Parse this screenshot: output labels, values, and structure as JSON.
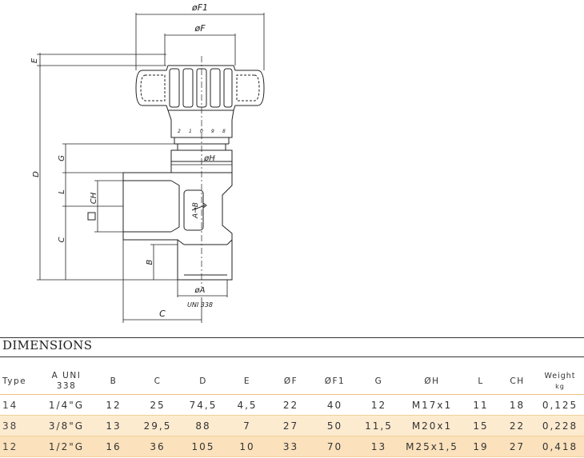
{
  "drawing": {
    "labels": {
      "f1": "øF1",
      "f": "øF",
      "e": "E",
      "d": "D",
      "g": "G",
      "l": "L",
      "ch": "CH",
      "h": "øH",
      "c_side": "C",
      "b": "B",
      "a": "øA",
      "uni": "UNI 338",
      "c_bottom": "C",
      "flow": "A→B",
      "scale": [
        "2",
        "1",
        "0",
        "9",
        "8"
      ]
    }
  },
  "section": {
    "title": "DIMENSIONS"
  },
  "table": {
    "headers": [
      [
        "Type"
      ],
      [
        "A UNI",
        "338"
      ],
      [
        "B"
      ],
      [
        "C"
      ],
      [
        "D"
      ],
      [
        "E"
      ],
      [
        "ØF"
      ],
      [
        "ØF1"
      ],
      [
        "G"
      ],
      [
        "ØH"
      ],
      [
        "L"
      ],
      [
        "CH"
      ],
      [
        "Weight",
        "kg"
      ]
    ],
    "rows": [
      [
        "14",
        "1/4\"G",
        "12",
        "25",
        "74,5",
        "4,5",
        "22",
        "40",
        "12",
        "M17x1",
        "11",
        "18",
        "0,125"
      ],
      [
        "38",
        "3/8\"G",
        "13",
        "29,5",
        "88",
        "7",
        "27",
        "50",
        "11,5",
        "M20x1",
        "15",
        "22",
        "0,228"
      ],
      [
        "12",
        "1/2\"G",
        "16",
        "36",
        "105",
        "10",
        "33",
        "70",
        "13",
        "M25x1,5",
        "19",
        "27",
        "0,418"
      ]
    ]
  }
}
